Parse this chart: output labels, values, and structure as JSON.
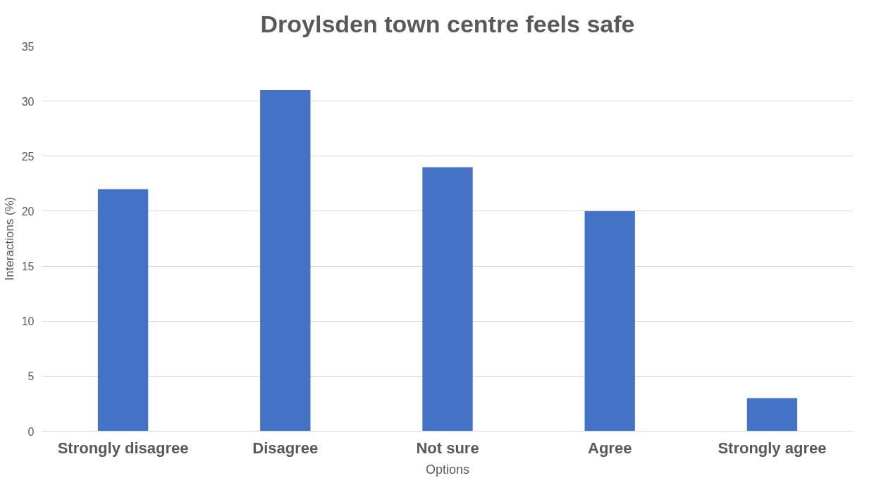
{
  "chart_data": {
    "type": "bar",
    "title": "Droylsden town centre feels safe",
    "xlabel": "Options",
    "ylabel": "Interactions (%)",
    "categories": [
      "Strongly disagree",
      "Disagree",
      "Not sure",
      "Agree",
      "Strongly agree"
    ],
    "values": [
      22,
      31,
      24,
      20,
      3
    ],
    "color": "#4472c4",
    "ylim": [
      0,
      35
    ],
    "yticks": [
      0,
      5,
      10,
      15,
      20,
      25,
      30,
      35
    ],
    "grid": "y"
  }
}
